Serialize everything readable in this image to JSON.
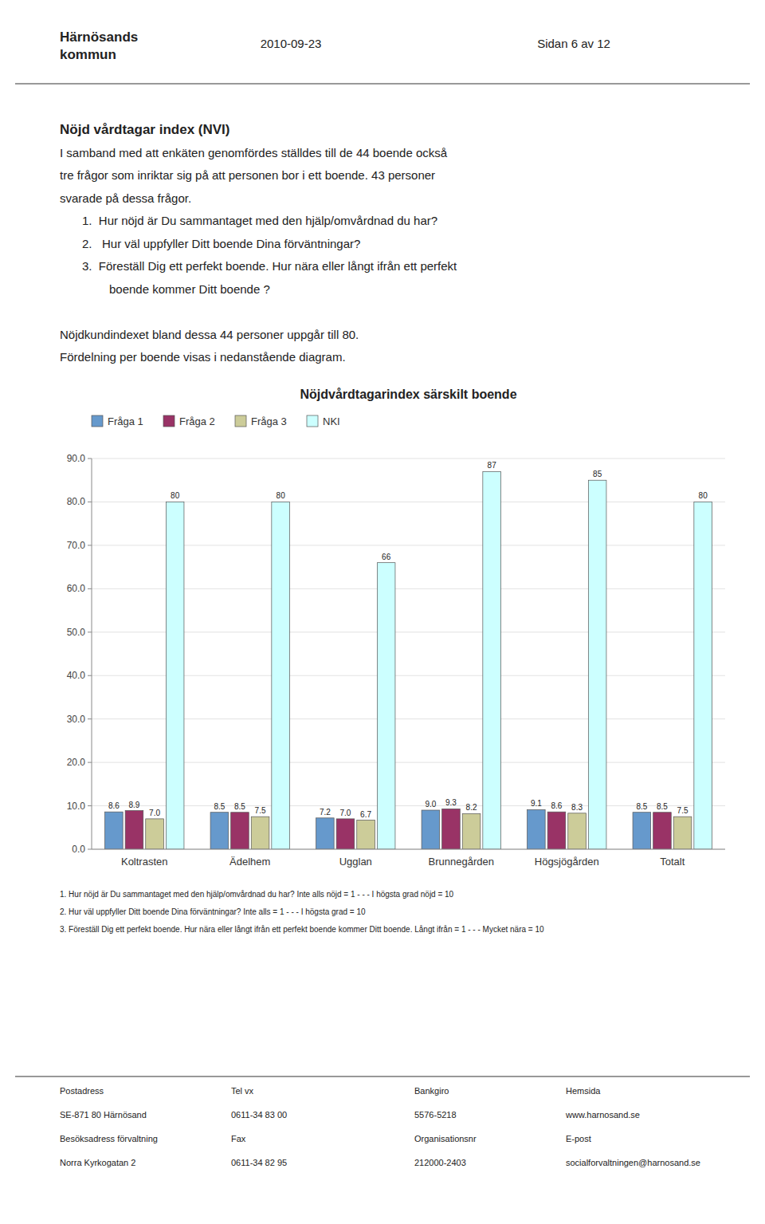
{
  "chart_data": {
    "type": "bar",
    "title": "Nöjdvårdtagarindex särskilt boende",
    "categories": [
      "Koltrasten",
      "Ädelhem",
      "Ugglan",
      "Brunnegården",
      "Högsjögården",
      "Totalt"
    ],
    "series": [
      {
        "name": "Fråga 1",
        "color": "#6699cc",
        "values": [
          8.6,
          8.5,
          7.2,
          9.0,
          9.1,
          8.5
        ],
        "value_labels": [
          "8.6",
          "8.5",
          "7.2",
          "9.0",
          "9.1",
          "8.5"
        ]
      },
      {
        "name": "Fråga 2",
        "color": "#993366",
        "values": [
          8.9,
          8.5,
          7.0,
          9.3,
          8.6,
          8.5
        ],
        "value_labels": [
          "8.9",
          "8.5",
          "7.0",
          "9.3",
          "8.6",
          "8.5"
        ]
      },
      {
        "name": "Fråga 3",
        "color": "#cccc99",
        "values": [
          7.0,
          7.5,
          6.7,
          8.2,
          8.3,
          7.5
        ],
        "value_labels": [
          "7.0",
          "7.5",
          "6.7",
          "8.2",
          "8.3",
          "7.5"
        ]
      },
      {
        "name": "NKI",
        "color": "#ccffff",
        "values": [
          80,
          80,
          66,
          87,
          85,
          80
        ]
      }
    ],
    "ylim": [
      0,
      90
    ],
    "yticks": [
      {
        "value": 0,
        "label": "0.0"
      },
      {
        "value": 10,
        "label": "10.0"
      },
      {
        "value": 20,
        "label": "20.0"
      },
      {
        "value": 30,
        "label": "30.0"
      },
      {
        "value": 40,
        "label": "40.0"
      },
      {
        "value": 50,
        "label": "50.0"
      },
      {
        "value": 60,
        "label": "60.0"
      },
      {
        "value": 70,
        "label": "70.0"
      },
      {
        "value": 80,
        "label": "80.0"
      },
      {
        "value": 90,
        "label": "90.0"
      }
    ],
    "grid": true,
    "legend": "upper left",
    "data_labels": true
  },
  "page_text": {
    "logo": [
      "Härnösands",
      "kommun"
    ],
    "header": [
      "2010-09-23",
      "Sidan 6 av 12"
    ],
    "heading": "Nöjd vårdtagar index (NVI)",
    "intro": [
      "I samband med att enkäten genomfördes ställdes till de 44 boende också",
      "tre frågor som inriktar sig på att personen bor i ett boende. 43 personer",
      "svarade på dessa frågor."
    ],
    "questions": [
      [
        "1.  Hur nöjd är Du sammantaget med den hjälp/omvårdnad du har?"
      ],
      [
        "2.   Hur väl uppfyller Ditt boende Dina förväntningar?"
      ],
      [
        "3.  Föreställ Dig ett perfekt boende. Hur nära eller långt ifrån ett perfekt",
        "boende kommer Ditt boende ?"
      ]
    ],
    "summary": [
      "Nöjdkundindexet bland dessa 44 personer uppgår till 80.",
      "Fördelning per boende visas i nedanstående diagram."
    ],
    "footnotes": [
      "1. Hur nöjd är Du sammantaget med den hjälp/omvårdnad du har? Inte alls nöjd = 1 - - - I högsta grad nöjd = 10",
      "2. Hur väl uppfyller Ditt boende Dina förväntningar? Inte alls = 1 - - - I högsta grad = 10",
      "3. Föreställ Dig ett perfekt boende. Hur nära eller långt ifrån ett perfekt boende kommer Ditt boende. Långt ifrån = 1 - - - Mycket nära = 10"
    ],
    "footer": [
      [
        "Postadress",
        "Tel vx",
        "Bankgiro",
        "Hemsida"
      ],
      [
        "SE-871 80 Härnösand",
        "0611-34 83 00",
        "5576-5218",
        "www.harnosand.se"
      ],
      [
        "Besöksadress förvaltning",
        "Fax",
        "Organisationsnr",
        "E-post"
      ],
      [
        "Norra Kyrkogatan 2",
        "0611-34 82 95",
        "212000-2403",
        "socialforvaltningen@harnosand.se"
      ]
    ]
  }
}
